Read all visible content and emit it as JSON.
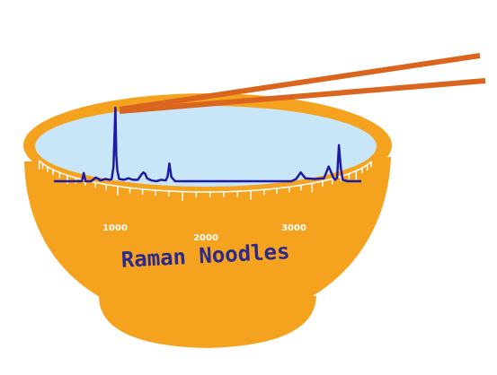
{
  "logo": {
    "title": "Raman Noodles",
    "colors": {
      "bowl": "#F5A31F",
      "bowl_shadow": "#E8931A",
      "broth": "#C8E6F8",
      "spectrum": "#1F1AA3",
      "chopsticks": "#D9651F",
      "rim_stroke": "#FFFFFF"
    }
  },
  "chart_data": {
    "type": "line",
    "tick_labels": [
      "1000",
      "2000",
      "3000"
    ],
    "xlim": [
      400,
      3700
    ],
    "ylim": [
      0,
      1
    ],
    "series": [
      {
        "x": [
          400,
          600,
          700,
          720,
          740,
          800,
          850,
          880,
          900,
          950,
          1000,
          1020,
          1040,
          1060,
          1070,
          1080,
          1100,
          1150,
          1200,
          1250,
          1300,
          1340,
          1360,
          1380,
          1400,
          1450,
          1500,
          1550,
          1600,
          1620,
          1640,
          1660,
          1700,
          1800,
          2000,
          2500,
          2800,
          2950,
          3000,
          3050,
          3100,
          3200,
          3300,
          3350,
          3400,
          3420,
          3440,
          3460,
          3480,
          3500,
          3550,
          3600,
          3650,
          3700
        ],
        "y": [
          0.0,
          0.0,
          0.0,
          0.11,
          0.0,
          0.0,
          0.05,
          0.03,
          0.01,
          0.03,
          0.02,
          0.03,
          0.2,
          1.0,
          0.35,
          0.15,
          0.03,
          0.02,
          0.04,
          0.02,
          0.02,
          0.09,
          0.12,
          0.1,
          0.04,
          0.01,
          0.0,
          0.02,
          0.01,
          0.06,
          0.24,
          0.06,
          0.0,
          0.0,
          0.0,
          0.0,
          0.0,
          0.0,
          0.03,
          0.12,
          0.04,
          0.03,
          0.04,
          0.2,
          0.05,
          0.02,
          0.05,
          0.49,
          0.18,
          0.02,
          0.0,
          0.0,
          0.0,
          0.0
        ]
      }
    ]
  }
}
